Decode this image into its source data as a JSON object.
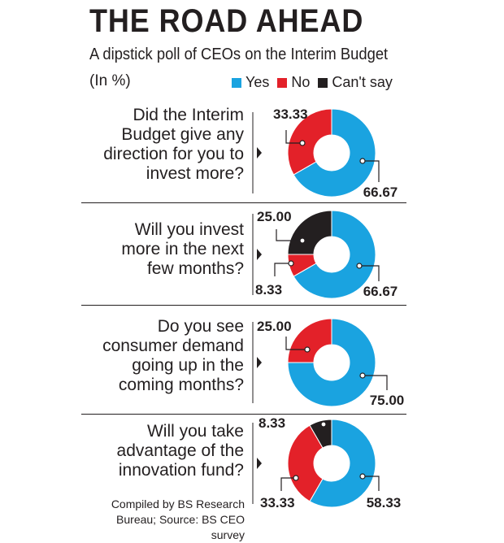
{
  "title": "THE ROAD AHEAD",
  "subtitle": "A dipstick poll of CEOs on the Interim Budget",
  "unit": "(In %)",
  "legend": [
    {
      "label": "Yes",
      "color": "#1aa3e0"
    },
    {
      "label": "No",
      "color": "#e32129"
    },
    {
      "label": "Can't say",
      "color": "#231f20"
    }
  ],
  "questions": [
    {
      "line1": "Did the Interim",
      "line2": "Budget give any",
      "line3": "direction for you to",
      "line4": "invest more?"
    },
    {
      "line1": "Will you invest",
      "line2": "more in the next",
      "line3": "few months?"
    },
    {
      "line1": "Do you see",
      "line2": "consumer demand",
      "line3": "going up in the",
      "line4": "coming months?"
    },
    {
      "line1": "Will you take",
      "line2": "advantage of the",
      "line3": "innovation fund?"
    }
  ],
  "credit": {
    "line1": "Compiled by BS Research",
    "line2": "Bureau;  Source: BS CEO survey"
  },
  "chart_data": [
    {
      "type": "pie",
      "title": "Did the Interim Budget give any direction for you to invest more?",
      "categories": [
        "Yes",
        "No"
      ],
      "values": [
        66.67,
        33.33
      ],
      "labels": [
        "66.67",
        "33.33"
      ]
    },
    {
      "type": "pie",
      "title": "Will you invest more in the next few months?",
      "categories": [
        "Yes",
        "No",
        "Can't say"
      ],
      "values": [
        66.67,
        8.33,
        25.0
      ],
      "labels": [
        "66.67",
        "8.33",
        "25.00"
      ]
    },
    {
      "type": "pie",
      "title": "Do you see consumer demand going up in the coming months?",
      "categories": [
        "Yes",
        "No"
      ],
      "values": [
        75.0,
        25.0
      ],
      "labels": [
        "75.00",
        "25.00"
      ]
    },
    {
      "type": "pie",
      "title": "Will you take advantage of the innovation fund?",
      "categories": [
        "Yes",
        "No",
        "Can't say"
      ],
      "values": [
        58.33,
        33.33,
        8.33
      ],
      "labels": [
        "58.33",
        "33.33",
        "8.33"
      ]
    }
  ]
}
